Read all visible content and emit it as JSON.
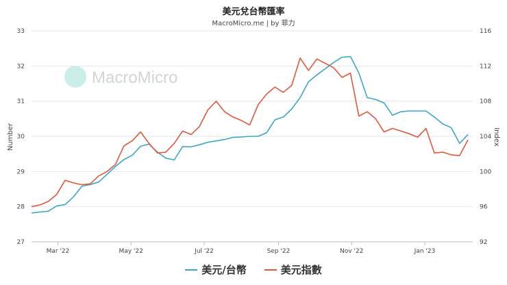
{
  "chart_data": {
    "type": "line",
    "title": "美元兌台幣匯率",
    "subtitle": "MacroMicro.me | by 菲力",
    "watermark": "MacroMicro",
    "y_left": {
      "label": "Number",
      "range": [
        27,
        33
      ],
      "ticks": [
        "27",
        "28",
        "29",
        "30",
        "31",
        "32",
        "33"
      ]
    },
    "y_right": {
      "label": "Index",
      "range": [
        92,
        116
      ],
      "ticks": [
        "92",
        "96",
        "100",
        "104",
        "108",
        "112",
        "116"
      ]
    },
    "x_axis": {
      "range": [
        "2022-02-07",
        "2023-02-10"
      ],
      "ticks": [
        {
          "label": "Mar '22",
          "date": "2022-03-01"
        },
        {
          "label": "May '22",
          "date": "2022-05-01"
        },
        {
          "label": "Jul '22",
          "date": "2022-07-01"
        },
        {
          "label": "Sep '22",
          "date": "2022-09-01"
        },
        {
          "label": "Nov '22",
          "date": "2022-11-01"
        },
        {
          "label": "Jan '23",
          "date": "2023-01-01"
        }
      ]
    },
    "grid": true,
    "legend_position": "bottom",
    "series": [
      {
        "name": "美元/台幣",
        "axis": "left",
        "color": "#3ba7c8",
        "points": [
          [
            "2022-02-07",
            27.82
          ],
          [
            "2022-02-14",
            27.85
          ],
          [
            "2022-02-21",
            27.87
          ],
          [
            "2022-02-28",
            28.02
          ],
          [
            "2022-03-07",
            28.06
          ],
          [
            "2022-03-14",
            28.28
          ],
          [
            "2022-03-21",
            28.58
          ],
          [
            "2022-03-28",
            28.63
          ],
          [
            "2022-04-04",
            28.7
          ],
          [
            "2022-04-11",
            28.92
          ],
          [
            "2022-04-18",
            29.14
          ],
          [
            "2022-04-25",
            29.34
          ],
          [
            "2022-05-02",
            29.46
          ],
          [
            "2022-05-09",
            29.72
          ],
          [
            "2022-05-16",
            29.78
          ],
          [
            "2022-05-23",
            29.55
          ],
          [
            "2022-05-30",
            29.38
          ],
          [
            "2022-06-06",
            29.33
          ],
          [
            "2022-06-13",
            29.71
          ],
          [
            "2022-06-20",
            29.7
          ],
          [
            "2022-06-27",
            29.76
          ],
          [
            "2022-07-04",
            29.83
          ],
          [
            "2022-07-11",
            29.87
          ],
          [
            "2022-07-18",
            29.91
          ],
          [
            "2022-07-25",
            29.97
          ],
          [
            "2022-08-01",
            29.98
          ],
          [
            "2022-08-08",
            30.0
          ],
          [
            "2022-08-15",
            30.0
          ],
          [
            "2022-08-22",
            30.1
          ],
          [
            "2022-08-29",
            30.47
          ],
          [
            "2022-09-05",
            30.55
          ],
          [
            "2022-09-12",
            30.78
          ],
          [
            "2022-09-19",
            31.1
          ],
          [
            "2022-09-26",
            31.55
          ],
          [
            "2022-10-03",
            31.75
          ],
          [
            "2022-10-10",
            31.92
          ],
          [
            "2022-10-17",
            32.1
          ],
          [
            "2022-10-24",
            32.25
          ],
          [
            "2022-10-31",
            32.27
          ],
          [
            "2022-11-07",
            31.8
          ],
          [
            "2022-11-14",
            31.1
          ],
          [
            "2022-11-21",
            31.05
          ],
          [
            "2022-11-28",
            30.95
          ],
          [
            "2022-12-05",
            30.6
          ],
          [
            "2022-12-12",
            30.7
          ],
          [
            "2022-12-19",
            30.72
          ],
          [
            "2022-12-26",
            30.72
          ],
          [
            "2023-01-02",
            30.72
          ],
          [
            "2023-01-09",
            30.55
          ],
          [
            "2023-01-16",
            30.35
          ],
          [
            "2023-01-23",
            30.25
          ],
          [
            "2023-01-30",
            29.8
          ],
          [
            "2023-02-06",
            30.05
          ]
        ]
      },
      {
        "name": "美元指數",
        "axis": "right",
        "color": "#e0573a",
        "points": [
          [
            "2022-02-07",
            96.0
          ],
          [
            "2022-02-14",
            96.2
          ],
          [
            "2022-02-21",
            96.6
          ],
          [
            "2022-02-28",
            97.4
          ],
          [
            "2022-03-07",
            99.0
          ],
          [
            "2022-03-14",
            98.7
          ],
          [
            "2022-03-21",
            98.5
          ],
          [
            "2022-03-28",
            98.6
          ],
          [
            "2022-04-04",
            99.5
          ],
          [
            "2022-04-11",
            100.0
          ],
          [
            "2022-04-18",
            100.8
          ],
          [
            "2022-04-25",
            102.9
          ],
          [
            "2022-05-02",
            103.5
          ],
          [
            "2022-05-09",
            104.5
          ],
          [
            "2022-05-16",
            103.2
          ],
          [
            "2022-05-23",
            102.1
          ],
          [
            "2022-05-30",
            102.2
          ],
          [
            "2022-06-06",
            103.2
          ],
          [
            "2022-06-13",
            104.6
          ],
          [
            "2022-06-20",
            104.2
          ],
          [
            "2022-06-27",
            105.1
          ],
          [
            "2022-07-04",
            107.0
          ],
          [
            "2022-07-11",
            108.0
          ],
          [
            "2022-07-18",
            106.8
          ],
          [
            "2022-07-25",
            106.2
          ],
          [
            "2022-08-01",
            105.8
          ],
          [
            "2022-08-08",
            105.3
          ],
          [
            "2022-08-15",
            107.6
          ],
          [
            "2022-08-22",
            108.8
          ],
          [
            "2022-08-29",
            109.6
          ],
          [
            "2022-09-05",
            109.0
          ],
          [
            "2022-09-12",
            109.8
          ],
          [
            "2022-09-19",
            112.9
          ],
          [
            "2022-09-26",
            111.5
          ],
          [
            "2022-10-03",
            112.8
          ],
          [
            "2022-10-10",
            112.3
          ],
          [
            "2022-10-17",
            111.8
          ],
          [
            "2022-10-24",
            110.7
          ],
          [
            "2022-10-31",
            111.2
          ],
          [
            "2022-11-07",
            106.3
          ],
          [
            "2022-11-14",
            106.8
          ],
          [
            "2022-11-21",
            106.0
          ],
          [
            "2022-11-28",
            104.5
          ],
          [
            "2022-12-05",
            104.9
          ],
          [
            "2022-12-12",
            104.6
          ],
          [
            "2022-12-19",
            104.3
          ],
          [
            "2022-12-26",
            103.9
          ],
          [
            "2023-01-02",
            104.9
          ],
          [
            "2023-01-09",
            102.1
          ],
          [
            "2023-01-16",
            102.2
          ],
          [
            "2023-01-23",
            101.9
          ],
          [
            "2023-01-30",
            101.8
          ],
          [
            "2023-02-06",
            103.6
          ]
        ]
      }
    ]
  }
}
